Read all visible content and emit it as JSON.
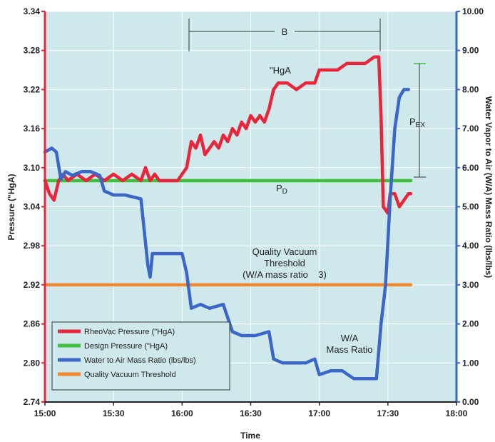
{
  "chart_data": {
    "type": "line",
    "xlabel": "Time",
    "ylabel": "Pressure (\"HgA)",
    "y2label": "Water Vapor to Air (W/A) Mass Ratio (lbs/lbs)",
    "x_ticks": [
      "15:00",
      "15:30",
      "16:00",
      "16:30",
      "17:00",
      "17:30",
      "18:00"
    ],
    "x_range_minutes": [
      900,
      1080
    ],
    "ylim": [
      2.74,
      3.34
    ],
    "y_ticks": [
      "2.74",
      "2.80",
      "2.86",
      "2.92",
      "2.98",
      "3.04",
      "3.10",
      "3.16",
      "3.22",
      "3.28",
      "3.34"
    ],
    "y2lim": [
      0,
      10
    ],
    "y2_ticks": [
      "0.00",
      "1.00",
      "2.00",
      "3.00",
      "4.00",
      "5.00",
      "6.00",
      "7.00",
      "8.00",
      "9.00",
      "10.00"
    ],
    "grid": true,
    "legend_position": "bottom-left",
    "series": [
      {
        "name": "RheoVac Pressure (\"HgA)",
        "axis": "left",
        "color": "#e8253a",
        "points": [
          [
            "15:00",
            3.08
          ],
          [
            "15:02",
            3.06
          ],
          [
            "15:04",
            3.05
          ],
          [
            "15:06",
            3.08
          ],
          [
            "15:08",
            3.09
          ],
          [
            "15:10",
            3.08
          ],
          [
            "15:14",
            3.09
          ],
          [
            "15:18",
            3.08
          ],
          [
            "15:22",
            3.09
          ],
          [
            "15:26",
            3.08
          ],
          [
            "15:30",
            3.09
          ],
          [
            "15:34",
            3.08
          ],
          [
            "15:38",
            3.09
          ],
          [
            "15:42",
            3.08
          ],
          [
            "15:44",
            3.1
          ],
          [
            "15:46",
            3.08
          ],
          [
            "15:48",
            3.09
          ],
          [
            "15:50",
            3.08
          ],
          [
            "15:54",
            3.08
          ],
          [
            "15:58",
            3.08
          ],
          [
            "16:00",
            3.09
          ],
          [
            "16:02",
            3.1
          ],
          [
            "16:04",
            3.14
          ],
          [
            "16:06",
            3.13
          ],
          [
            "16:08",
            3.15
          ],
          [
            "16:10",
            3.12
          ],
          [
            "16:12",
            3.13
          ],
          [
            "16:14",
            3.14
          ],
          [
            "16:16",
            3.13
          ],
          [
            "16:18",
            3.15
          ],
          [
            "16:20",
            3.14
          ],
          [
            "16:22",
            3.16
          ],
          [
            "16:24",
            3.15
          ],
          [
            "16:26",
            3.17
          ],
          [
            "16:28",
            3.16
          ],
          [
            "16:30",
            3.18
          ],
          [
            "16:32",
            3.17
          ],
          [
            "16:34",
            3.18
          ],
          [
            "16:36",
            3.17
          ],
          [
            "16:38",
            3.19
          ],
          [
            "16:40",
            3.22
          ],
          [
            "16:42",
            3.23
          ],
          [
            "16:46",
            3.23
          ],
          [
            "16:50",
            3.22
          ],
          [
            "16:54",
            3.23
          ],
          [
            "16:58",
            3.23
          ],
          [
            "17:00",
            3.25
          ],
          [
            "17:04",
            3.25
          ],
          [
            "17:08",
            3.25
          ],
          [
            "17:12",
            3.26
          ],
          [
            "17:16",
            3.26
          ],
          [
            "17:20",
            3.26
          ],
          [
            "17:24",
            3.27
          ],
          [
            "17:26",
            3.27
          ],
          [
            "17:27",
            3.18
          ],
          [
            "17:28",
            3.04
          ],
          [
            "17:30",
            3.03
          ],
          [
            "17:31",
            3.06
          ],
          [
            "17:33",
            3.06
          ],
          [
            "17:35",
            3.04
          ],
          [
            "17:37",
            3.05
          ],
          [
            "17:39",
            3.06
          ],
          [
            "17:40",
            3.06
          ]
        ]
      },
      {
        "name": "Design Pressure (\"HgA)",
        "axis": "left",
        "color": "#3fbf3a",
        "points": [
          [
            "15:00",
            3.08
          ],
          [
            "17:40",
            3.08
          ]
        ]
      },
      {
        "name": "Water to Air Mass Ratio (lbs/lbs)",
        "axis": "right",
        "color": "#3a66c8",
        "points": [
          [
            "15:00",
            6.4
          ],
          [
            "15:03",
            6.5
          ],
          [
            "15:05",
            6.4
          ],
          [
            "15:07",
            5.7
          ],
          [
            "15:09",
            5.9
          ],
          [
            "15:12",
            5.8
          ],
          [
            "15:16",
            5.9
          ],
          [
            "15:20",
            5.9
          ],
          [
            "15:24",
            5.8
          ],
          [
            "15:26",
            5.4
          ],
          [
            "15:30",
            5.3
          ],
          [
            "15:35",
            5.3
          ],
          [
            "15:42",
            5.2
          ],
          [
            "15:45",
            3.5
          ],
          [
            "15:46",
            3.2
          ],
          [
            "15:47",
            3.8
          ],
          [
            "15:50",
            3.8
          ],
          [
            "15:55",
            3.8
          ],
          [
            "16:00",
            3.8
          ],
          [
            "16:02",
            3.3
          ],
          [
            "16:04",
            2.4
          ],
          [
            "16:08",
            2.5
          ],
          [
            "16:12",
            2.4
          ],
          [
            "16:18",
            2.5
          ],
          [
            "16:22",
            1.8
          ],
          [
            "16:26",
            1.7
          ],
          [
            "16:32",
            1.7
          ],
          [
            "16:38",
            1.8
          ],
          [
            "16:40",
            1.1
          ],
          [
            "16:44",
            1.0
          ],
          [
            "16:50",
            1.0
          ],
          [
            "16:54",
            1.0
          ],
          [
            "16:58",
            1.1
          ],
          [
            "17:00",
            0.7
          ],
          [
            "17:05",
            0.8
          ],
          [
            "17:10",
            0.8
          ],
          [
            "17:15",
            0.6
          ],
          [
            "17:19",
            0.6
          ],
          [
            "17:22",
            0.6
          ],
          [
            "17:25",
            0.6
          ],
          [
            "17:27",
            2.0
          ],
          [
            "17:29",
            3.0
          ],
          [
            "17:31",
            5.2
          ],
          [
            "17:33",
            7.0
          ],
          [
            "17:35",
            7.8
          ],
          [
            "17:37",
            8.0
          ],
          [
            "17:39",
            8.0
          ]
        ]
      },
      {
        "name": "Quality Vacuum Threshold",
        "axis": "right",
        "color": "#f08a2c",
        "points": [
          [
            "15:00",
            3.0
          ],
          [
            "17:40",
            3.0
          ]
        ]
      }
    ],
    "annotations": {
      "bracket_b": "B",
      "hga": "\"HgA",
      "pex": "P",
      "pex_sub": "EX",
      "pd": "P",
      "pd_sub": "D",
      "qvt_line1": "Quality Vacuum",
      "qvt_line2": "Threshold",
      "qvt_line3": "(W/A mass ratio    3)",
      "wa_line1": "W/A",
      "wa_line2": "Mass Ratio"
    },
    "colors": {
      "plot_background": "#cfe8ec",
      "grid": "#ffffff",
      "left_axis": "#e8253a",
      "right_axis": "#3a66c8",
      "bracket": "#333333",
      "pex_bracket": "#3fbf3a"
    }
  }
}
